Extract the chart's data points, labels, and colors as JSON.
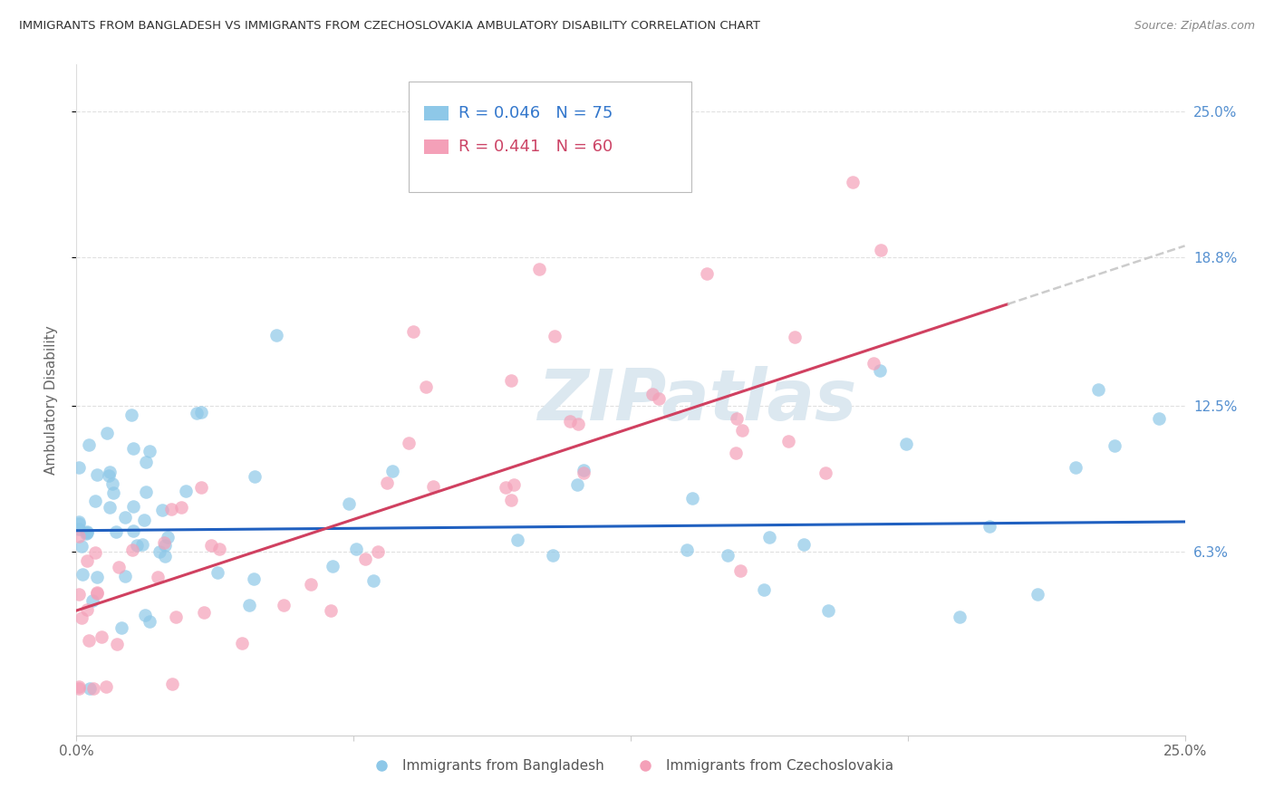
{
  "title": "IMMIGRANTS FROM BANGLADESH VS IMMIGRANTS FROM CZECHOSLOVAKIA AMBULATORY DISABILITY CORRELATION CHART",
  "source": "Source: ZipAtlas.com",
  "ylabel": "Ambulatory Disability",
  "xlim": [
    0.0,
    25.0
  ],
  "ylim": [
    -1.5,
    27.0
  ],
  "yticks": [
    6.3,
    12.5,
    18.8,
    25.0
  ],
  "xtick_positions": [
    0,
    6.25,
    12.5,
    18.75,
    25.0
  ],
  "xtick_labels": [
    "0.0%",
    "",
    "",
    "",
    "25.0%"
  ],
  "ytick_labels": [
    "6.3%",
    "12.5%",
    "18.8%",
    "25.0%"
  ],
  "series1_label": "Immigrants from Bangladesh",
  "series2_label": "Immigrants from Czechoslovakia",
  "series1_color": "#8ec8e8",
  "series2_color": "#f4a0b8",
  "series1_line_color": "#2060c0",
  "series2_line_color": "#d04060",
  "series2_dash_color": "#cccccc",
  "R1": "0.046",
  "N1": 75,
  "R2": "0.441",
  "N2": 60,
  "watermark": "ZIPatlas",
  "background_color": "#ffffff",
  "title_color": "#333333",
  "source_color": "#888888",
  "right_tick_color": "#5590d0",
  "legend_R1_color": "#3377cc",
  "legend_R2_color": "#cc4466",
  "legend_N1_color": "#dd4444",
  "legend_N2_color": "#dd4444",
  "seed": 12345,
  "bang_line_intercept": 7.2,
  "bang_line_slope": 0.015,
  "czech_line_intercept": 3.8,
  "czech_line_slope": 0.62,
  "czech_data_max_x": 21.0
}
